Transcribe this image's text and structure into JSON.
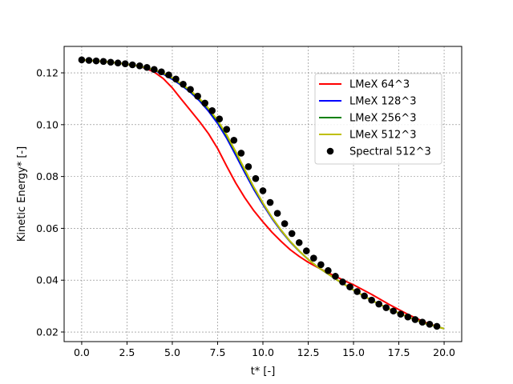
{
  "chart_data": {
    "type": "line",
    "xlabel": "t* [-]",
    "ylabel": "Kinetic Energy* [-]",
    "xlim": [
      -0.97,
      20.97
    ],
    "ylim": [
      0.0163,
      0.1302
    ],
    "xticks": [
      "0.0",
      "2.5",
      "5.0",
      "7.5",
      "10.0",
      "12.5",
      "15.0",
      "17.5",
      "20.0"
    ],
    "xtick_values": [
      0,
      2.5,
      5,
      7.5,
      10,
      12.5,
      15,
      17.5,
      20
    ],
    "yticks": [
      "0.02",
      "0.04",
      "0.06",
      "0.08",
      "0.10",
      "0.12"
    ],
    "ytick_values": [
      0.02,
      0.04,
      0.06,
      0.08,
      0.1,
      0.12
    ],
    "grid": true,
    "legend_position": "upper-right",
    "series": [
      {
        "name": "LMeX 64^3",
        "color": "#ff0000",
        "style": "line",
        "x": [
          0,
          1,
          2,
          3,
          3.5,
          4,
          4.5,
          5,
          5.5,
          6,
          6.5,
          7,
          7.5,
          8,
          8.5,
          9,
          9.5,
          10,
          10.5,
          11,
          11.5,
          12,
          12.5,
          13,
          13.5,
          14,
          14.5,
          15,
          16,
          17,
          18,
          19,
          19.8
        ],
        "y": [
          0.125,
          0.1245,
          0.1238,
          0.1228,
          0.1218,
          0.1203,
          0.1178,
          0.1142,
          0.1098,
          0.1055,
          0.1012,
          0.0965,
          0.0908,
          0.084,
          0.0775,
          0.0718,
          0.0668,
          0.0625,
          0.0585,
          0.055,
          0.0518,
          0.0492,
          0.0469,
          0.045,
          0.0432,
          0.0415,
          0.0398,
          0.0382,
          0.0345,
          0.0305,
          0.0268,
          0.0236,
          0.0216
        ]
      },
      {
        "name": "LMeX 128^3",
        "color": "#0000ff",
        "style": "line",
        "x": [
          0,
          1,
          2,
          3,
          4,
          4.5,
          5,
          5.5,
          6,
          6.5,
          7,
          7.5,
          8,
          8.5,
          9,
          9.5,
          10,
          10.5,
          11,
          11.5,
          12,
          12.5,
          13,
          14,
          15,
          16,
          17,
          18,
          19,
          20
        ],
        "y": [
          0.125,
          0.1245,
          0.1238,
          0.1228,
          0.121,
          0.1195,
          0.1175,
          0.1152,
          0.1125,
          0.1092,
          0.1052,
          0.1005,
          0.0948,
          0.0882,
          0.0815,
          0.075,
          0.0692,
          0.0638,
          0.059,
          0.0548,
          0.0512,
          0.048,
          0.0452,
          0.0405,
          0.0362,
          0.0322,
          0.0288,
          0.0258,
          0.0232,
          0.0213
        ]
      },
      {
        "name": "LMeX 256^3",
        "color": "#008000",
        "style": "line",
        "x": [
          0,
          1,
          2,
          3,
          4,
          4.5,
          5,
          5.5,
          6,
          6.5,
          7,
          7.5,
          8,
          8.5,
          9,
          9.5,
          10,
          10.5,
          11,
          11.5,
          12,
          12.5,
          13,
          14,
          15,
          16,
          17,
          18,
          19,
          20
        ],
        "y": [
          0.125,
          0.1245,
          0.1238,
          0.1228,
          0.1212,
          0.1198,
          0.1179,
          0.1156,
          0.1129,
          0.1098,
          0.106,
          0.1013,
          0.0957,
          0.0892,
          0.0824,
          0.0757,
          0.0697,
          0.0642,
          0.0593,
          0.055,
          0.0513,
          0.048,
          0.0452,
          0.0405,
          0.0362,
          0.0322,
          0.0288,
          0.0258,
          0.0232,
          0.0213
        ]
      },
      {
        "name": "LMeX 512^3",
        "color": "#bfbf00",
        "style": "line",
        "x": [
          0,
          1,
          2,
          3,
          4,
          4.5,
          5,
          5.5,
          6,
          6.5,
          7,
          7.5,
          8,
          8.5,
          9,
          9.5,
          10,
          10.5,
          11,
          11.5,
          12,
          12.5,
          13,
          14,
          15,
          16,
          17,
          18,
          19,
          20
        ],
        "y": [
          0.125,
          0.1245,
          0.1238,
          0.1228,
          0.1213,
          0.1199,
          0.1181,
          0.1158,
          0.1132,
          0.1101,
          0.1063,
          0.1017,
          0.0961,
          0.0896,
          0.0827,
          0.0759,
          0.0698,
          0.0642,
          0.0593,
          0.055,
          0.0513,
          0.048,
          0.0452,
          0.0405,
          0.0362,
          0.0322,
          0.0288,
          0.0258,
          0.0232,
          0.0213
        ]
      },
      {
        "name": "Spectral 512^3",
        "color": "#000000",
        "style": "markers",
        "x": [
          0,
          0.4,
          0.8,
          1.2,
          1.6,
          2.0,
          2.4,
          2.8,
          3.2,
          3.6,
          4.0,
          4.4,
          4.8,
          5.2,
          5.6,
          6.0,
          6.4,
          6.8,
          7.2,
          7.6,
          8.0,
          8.4,
          8.8,
          9.2,
          9.6,
          10.0,
          10.4,
          10.8,
          11.2,
          11.6,
          12.0,
          12.4,
          12.8,
          13.2,
          13.6,
          14.0,
          14.4,
          14.8,
          15.2,
          15.6,
          16.0,
          16.4,
          16.8,
          17.2,
          17.6,
          18.0,
          18.4,
          18.8,
          19.2,
          19.6
        ],
        "y": [
          0.125,
          0.1248,
          0.1246,
          0.1244,
          0.1241,
          0.1238,
          0.1235,
          0.1231,
          0.1227,
          0.1221,
          0.1213,
          0.1204,
          0.1192,
          0.1176,
          0.1156,
          0.1136,
          0.111,
          0.1083,
          0.1054,
          0.1022,
          0.0982,
          0.094,
          0.089,
          0.0838,
          0.0792,
          0.0745,
          0.07,
          0.0658,
          0.0618,
          0.058,
          0.0545,
          0.0513,
          0.0485,
          0.046,
          0.0437,
          0.0415,
          0.0393,
          0.0374,
          0.0356,
          0.0339,
          0.0323,
          0.0308,
          0.0294,
          0.0281,
          0.0269,
          0.0258,
          0.0248,
          0.0238,
          0.023,
          0.0222
        ]
      }
    ]
  }
}
